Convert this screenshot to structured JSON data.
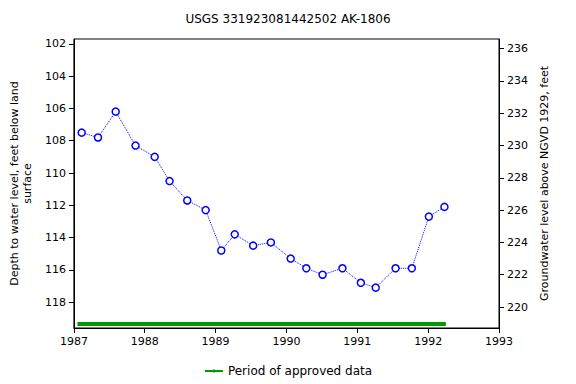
{
  "chart_data": {
    "type": "line",
    "title": "USGS 331923081442502 AK-1806",
    "y_label": "Depth to water level, feet below land\nsurface",
    "y2_label": "Groundwater level above NGVD 1929, feet",
    "xlim": [
      1987,
      1993
    ],
    "xticks": [
      1987,
      1988,
      1989,
      1990,
      1991,
      1992,
      1993
    ],
    "ylim": [
      119.6,
      101.7
    ],
    "yticks": [
      102,
      104,
      106,
      108,
      110,
      112,
      114,
      116,
      118
    ],
    "y2lim": [
      218.7,
      236.6
    ],
    "y2ticks": [
      220,
      222,
      224,
      226,
      228,
      230,
      232,
      234,
      236
    ],
    "grid": false,
    "legend": "bottom",
    "series": [
      {
        "color": "#0000ff",
        "marker": "circle",
        "line_style": "dotted",
        "x": [
          1987.11,
          1987.34,
          1987.59,
          1987.87,
          1988.14,
          1988.35,
          1988.6,
          1988.86,
          1989.08,
          1989.27,
          1989.53,
          1989.78,
          1990.06,
          1990.28,
          1990.51,
          1990.79,
          1991.05,
          1991.26,
          1991.54,
          1991.77,
          1992.01,
          1992.23
        ],
        "values": [
          107.5,
          107.8,
          106.2,
          108.3,
          109.0,
          110.5,
          111.7,
          112.3,
          114.8,
          113.8,
          114.5,
          114.3,
          115.3,
          115.9,
          116.3,
          115.9,
          116.8,
          117.1,
          115.9,
          115.9,
          112.7,
          112.1
        ]
      },
      {
        "name": "Period of approved data",
        "color": "#009900",
        "marker": "none",
        "line_style": "solid",
        "x": [
          1987.05,
          1992.25
        ],
        "values": [
          119.35,
          119.35
        ]
      }
    ]
  }
}
